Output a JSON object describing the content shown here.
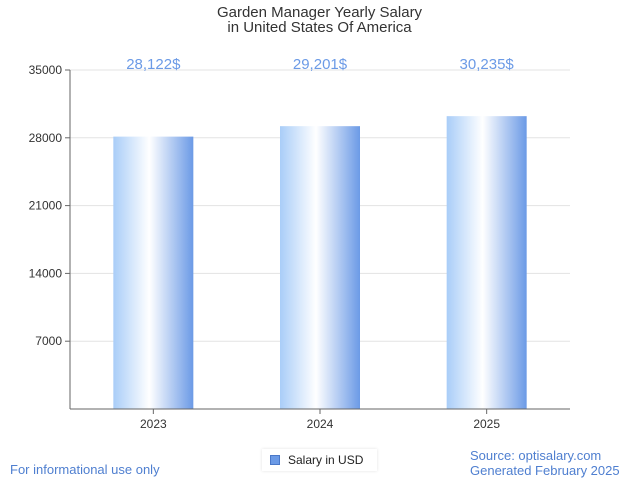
{
  "title": "Garden Manager Yearly Salary",
  "subtitle": "in United States Of America",
  "footer": {
    "disclaimer": "For informational use only",
    "source": "Source: optisalary.com",
    "generated": "Generated February 2025"
  },
  "legend": {
    "label": "Salary in USD"
  },
  "colors": {
    "accent": "#6b9ae6",
    "bar_light": "#ffffff",
    "bar_dark": "#7aa6ee"
  },
  "chart_data": {
    "type": "bar",
    "title": "Garden Manager Yearly Salary",
    "subtitle": "in United States Of America",
    "categories": [
      "2023",
      "2024",
      "2025"
    ],
    "values": [
      28122,
      29201,
      30235
    ],
    "value_labels": [
      "28,122$",
      "29,201$",
      "30,235$"
    ],
    "series": [
      {
        "name": "Salary in USD",
        "values": [
          28122,
          29201,
          30235
        ]
      }
    ],
    "yticks": [
      7000,
      14000,
      21000,
      28000,
      35000
    ],
    "ytick_labels": [
      "7000",
      "14000",
      "21000",
      "28000",
      "35000"
    ],
    "ylim": [
      0,
      35000
    ],
    "xlabel": "",
    "ylabel": "",
    "grid": true,
    "legend_position": "bottom"
  }
}
